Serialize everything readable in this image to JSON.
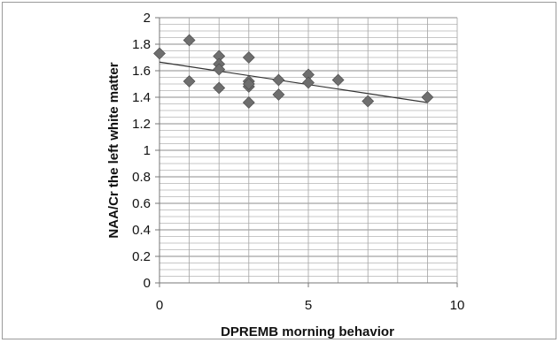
{
  "chart_data": {
    "type": "scatter",
    "title": "",
    "xlabel": "DPREMB morning behavior",
    "ylabel": "NAA/Cr the left white matter",
    "xlim": [
      0,
      10
    ],
    "ylim": [
      0,
      2
    ],
    "x_ticks": [
      "0",
      "5",
      "10"
    ],
    "y_ticks": [
      "0",
      "0.2",
      "0.4",
      "0.6",
      "0.8",
      "1",
      "1.2",
      "1.4",
      "1.6",
      "1.8",
      "2"
    ],
    "grid": "horizontal minor + vertical major",
    "legend": "none",
    "marker": "diamond",
    "marker_color": "#6e6e6e",
    "trendline": {
      "type": "linear",
      "start": [
        0,
        1.665
      ],
      "end": [
        9,
        1.36
      ],
      "color": "#333333"
    },
    "series": [
      {
        "x": [
          0,
          1,
          1,
          2,
          2,
          2,
          2,
          3,
          3,
          3,
          3,
          3,
          4,
          4,
          5,
          5,
          6,
          7,
          9
        ],
        "y": [
          1.73,
          1.83,
          1.52,
          1.71,
          1.65,
          1.61,
          1.47,
          1.7,
          1.52,
          1.48,
          1.5,
          1.36,
          1.53,
          1.42,
          1.57,
          1.51,
          1.53,
          1.37,
          1.4
        ]
      }
    ]
  }
}
